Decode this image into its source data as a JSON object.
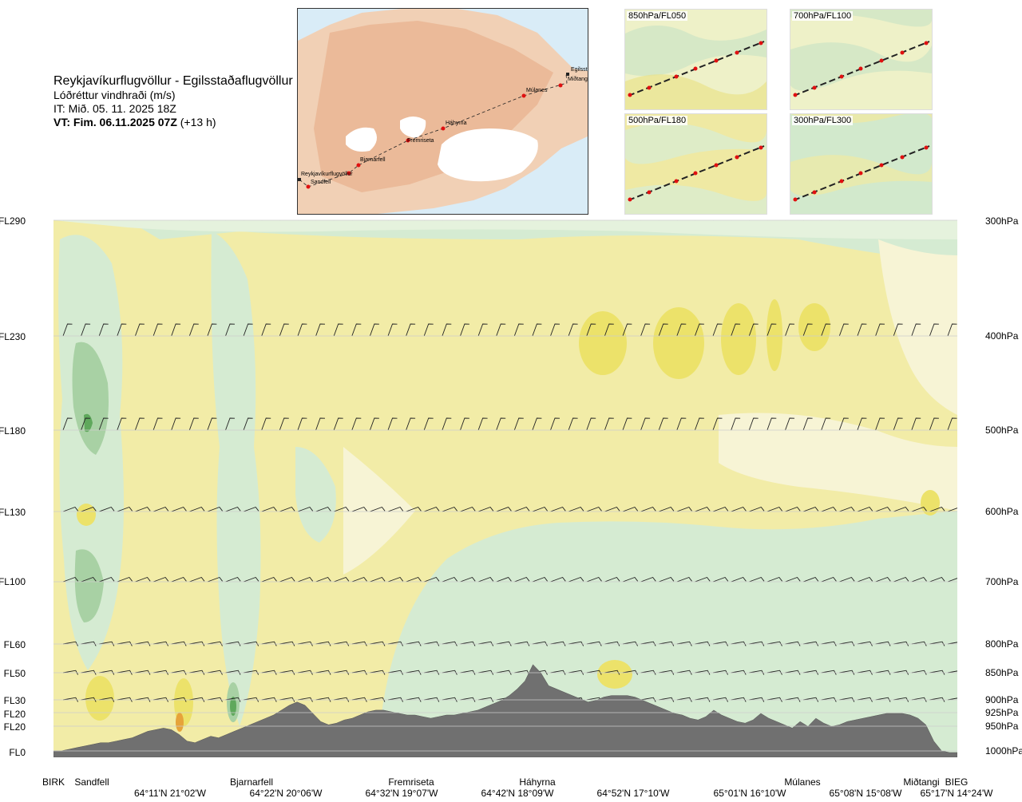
{
  "header": {
    "route": "Reykjavíkurflugvöllur - Egilsstaðaflugvöllur",
    "variable": "Lóðréttur vindhraði (m/s)",
    "issue_time": "IT: Mið. 05. 11. 2025 18Z",
    "valid_time_bold": "VT: Fim. 06.11.2025 07Z",
    "valid_offset": "(+13 h)"
  },
  "route_map": {
    "waypoints": [
      "Reykjavíkurflugvöllur",
      "Sandfell",
      "Bjarnarfell",
      "Fremriseta",
      "Háhyrna",
      "Múlanes",
      "Egilsst",
      "Miðtangi"
    ]
  },
  "level_maps": [
    {
      "label": "850hPa/FL050"
    },
    {
      "label": "700hPa/FL100"
    },
    {
      "label": "500hPa/FL180"
    },
    {
      "label": "300hPa/FL300"
    }
  ],
  "colors": {
    "ground": "#707070",
    "background": "#f2eca7",
    "green_light": "#d5ebd2",
    "green_mid": "#a8d1a4",
    "green_dark": "#5fa85c",
    "yellow_mid": "#ece26a",
    "yellow_strong": "#e2d22d",
    "orange": "#e6a33a",
    "line_route": "#222222",
    "waypoint_dot": "#e01010"
  },
  "chart_data": {
    "type": "heatmap",
    "title": "",
    "xlabel": "",
    "ylabel": "",
    "left_axis_labels": [
      "FL290",
      "FL230",
      "FL180",
      "FL130",
      "FL100",
      "FL60",
      "FL50",
      "FL30",
      "FL20",
      "FL20",
      "FL0"
    ],
    "right_axis_labels": [
      "300hPa",
      "400hPa",
      "500hPa",
      "600hPa",
      "700hPa",
      "800hPa",
      "850hPa",
      "900hPa",
      "925hPa",
      "950hPa",
      "1000hPa"
    ],
    "pressure_levels_hpa": [
      300,
      400,
      500,
      600,
      700,
      800,
      850,
      900,
      925,
      950,
      1000
    ],
    "waypoint_labels": [
      "BIRK",
      "Sandfell",
      "Bjarnarfell",
      "Fremriseta",
      "Háhyrna",
      "Múlanes",
      "Miðtangi",
      "BIEG"
    ],
    "coordinate_labels": [
      "64°11'N 21°02'W",
      "64°22'N 20°06'W",
      "64°32'N 19°07'W",
      "64°42'N 18°09'W",
      "64°52'N 17°10'W",
      "65°01'N 16°10'W",
      "65°08'N 15°08'W",
      "65°17'N 14°24'W"
    ],
    "terrain_elevation_fl": [
      2,
      2,
      3,
      4,
      5,
      6,
      7,
      7,
      8,
      9,
      10,
      12,
      14,
      15,
      16,
      15,
      12,
      8,
      7,
      9,
      11,
      10,
      12,
      14,
      16,
      18,
      20,
      22,
      24,
      27,
      30,
      32,
      30,
      25,
      20,
      18,
      19,
      21,
      22,
      24,
      26,
      27,
      27,
      26,
      25,
      24,
      24,
      23,
      22,
      23,
      24,
      24,
      25,
      26,
      27,
      29,
      31,
      33,
      36,
      40,
      45,
      55,
      50,
      42,
      40,
      38,
      36,
      34,
      32,
      33,
      35,
      36,
      36,
      36,
      35,
      33,
      31,
      29,
      27,
      25,
      24,
      22,
      21,
      23,
      27,
      24,
      22,
      20,
      19,
      21,
      25,
      22,
      20,
      18,
      16,
      20,
      17,
      22,
      19,
      17,
      18,
      20,
      21,
      22,
      23,
      24,
      25,
      25,
      25,
      24,
      22,
      18,
      8,
      2,
      1,
      1
    ]
  }
}
